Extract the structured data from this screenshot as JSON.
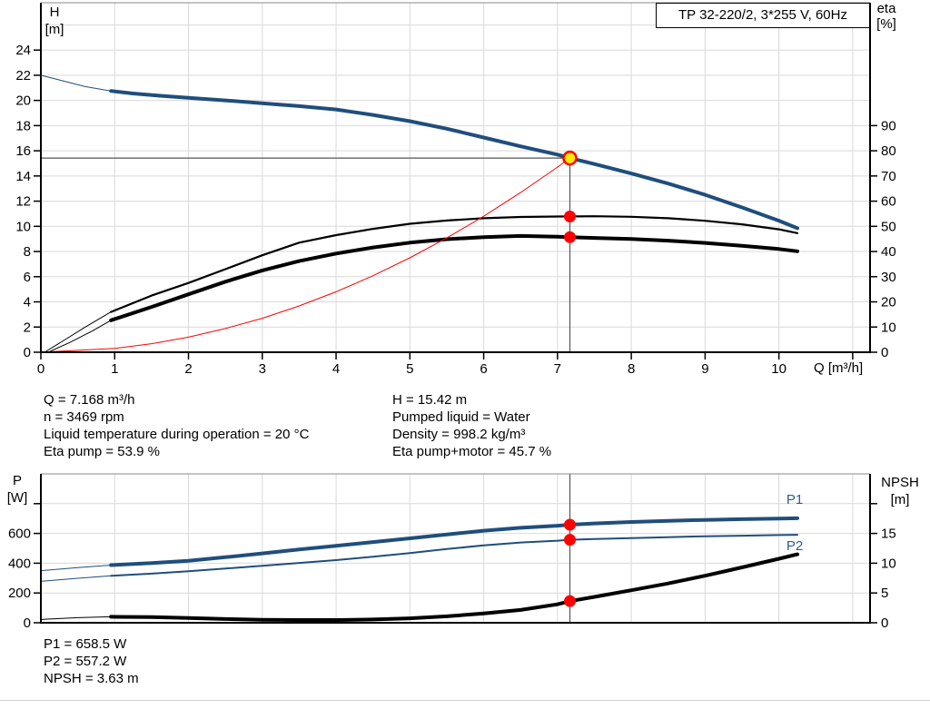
{
  "theme": {
    "blue": "#1f4e7c",
    "label_blue": "#2c5d90",
    "red": "#fe0000",
    "yellow": "#ffe800",
    "grid": "#d9d9d9",
    "crosshair": "#555555",
    "black": "#000000",
    "frame_top": "#8a8a8a"
  },
  "annotations": {
    "left": [
      "Q = 7.168 m³/h",
      "n = 3469 rpm",
      "Liquid temperature during operation = 20 °C",
      "Eta pump = 53.9 %"
    ],
    "right": [
      "H = 15.42 m",
      "Pumped liquid = Water",
      "Density = 998.2 kg/m³",
      "Eta pump+motor = 45.7 %"
    ],
    "bottom": [
      "P1 = 658.5 W",
      "P2 = 557.2 W",
      "NPSH = 3.63 m"
    ]
  },
  "chart_data": [
    {
      "type": "line",
      "title": "TP 32-220/2, 3*255 V, 60Hz",
      "x_axis": {
        "label": "Q [m³/h]",
        "min": 0,
        "max": 11.235,
        "ticks": [
          0,
          1,
          2,
          3,
          4,
          5,
          6,
          7,
          8,
          9,
          10
        ],
        "unlabeled_ticks": [
          11
        ],
        "gridlines": [
          1,
          2,
          3,
          4,
          5,
          6,
          7,
          8,
          9,
          10,
          11
        ]
      },
      "y_left": {
        "label_line1": "H",
        "label_line2": "[m]",
        "min": 0,
        "max": 27.76,
        "ticks": [
          0,
          2,
          4,
          6,
          8,
          10,
          12,
          14,
          16,
          18,
          20,
          22,
          24
        ],
        "gridlines": [
          2,
          4,
          6,
          8,
          10,
          12,
          14,
          16,
          18,
          20,
          22,
          24,
          26
        ]
      },
      "y_right": {
        "label_line1": "eta",
        "label_line2": "[%]",
        "min": 0,
        "max": 138.8,
        "ticks": [
          0,
          10,
          20,
          30,
          40,
          50,
          60,
          70,
          80,
          90
        ]
      },
      "series": [
        {
          "id": "h-curve",
          "name": "Pump curve H(Q)",
          "axis": "left",
          "color": "blue",
          "width": 4,
          "thin_until": 0.95,
          "points": [
            [
              0,
              22.0
            ],
            [
              0.3,
              21.55
            ],
            [
              0.6,
              21.1
            ],
            [
              0.95,
              20.75
            ],
            [
              1.25,
              20.55
            ],
            [
              1.6,
              20.38
            ],
            [
              2,
              20.2
            ],
            [
              2.5,
              20.0
            ],
            [
              3,
              19.78
            ],
            [
              3.5,
              19.55
            ],
            [
              4,
              19.28
            ],
            [
              4.5,
              18.85
            ],
            [
              5,
              18.35
            ],
            [
              5.5,
              17.75
            ],
            [
              6,
              17.05
            ],
            [
              6.5,
              16.35
            ],
            [
              7,
              15.7
            ],
            [
              7.168,
              15.42
            ],
            [
              7.5,
              14.95
            ],
            [
              8,
              14.2
            ],
            [
              8.5,
              13.4
            ],
            [
              9,
              12.5
            ],
            [
              9.5,
              11.5
            ],
            [
              10,
              10.45
            ],
            [
              10.25,
              9.85
            ]
          ]
        },
        {
          "id": "eta-pump-curve",
          "name": "Eta pump",
          "axis": "right",
          "color": "black",
          "width": 2.2,
          "thin_until": 0.95,
          "points": [
            [
              0.05,
              0
            ],
            [
              0.3,
              4.5
            ],
            [
              0.6,
              10
            ],
            [
              0.95,
              16
            ],
            [
              1.5,
              22.5
            ],
            [
              2,
              27.5
            ],
            [
              2.5,
              33
            ],
            [
              3,
              38.5
            ],
            [
              3.5,
              43.5
            ],
            [
              4,
              46.5
            ],
            [
              4.5,
              49
            ],
            [
              5,
              51
            ],
            [
              5.5,
              52.3
            ],
            [
              6,
              53.2
            ],
            [
              6.5,
              53.7
            ],
            [
              7,
              53.9
            ],
            [
              7.5,
              54
            ],
            [
              8,
              53.8
            ],
            [
              8.5,
              53.2
            ],
            [
              9,
              52.2
            ],
            [
              9.5,
              50.8
            ],
            [
              10,
              48.8
            ],
            [
              10.25,
              47.3
            ]
          ]
        },
        {
          "id": "eta-pump-motor-curve",
          "name": "Eta pump+motor",
          "axis": "right",
          "color": "black",
          "width": 4,
          "thin_until": 0.95,
          "points": [
            [
              0.1,
              0
            ],
            [
              0.4,
              4
            ],
            [
              0.7,
              8.5
            ],
            [
              0.95,
              12.7
            ],
            [
              1.5,
              18
            ],
            [
              2,
              23
            ],
            [
              2.5,
              28
            ],
            [
              3,
              32.5
            ],
            [
              3.5,
              36.2
            ],
            [
              4,
              39.2
            ],
            [
              4.5,
              41.6
            ],
            [
              5,
              43.5
            ],
            [
              5.5,
              44.9
            ],
            [
              6,
              45.7
            ],
            [
              6.5,
              46.2
            ],
            [
              7,
              45.9
            ],
            [
              7.168,
              45.7
            ],
            [
              7.5,
              45.4
            ],
            [
              8,
              45
            ],
            [
              8.5,
              44.3
            ],
            [
              9,
              43.4
            ],
            [
              9.5,
              42.3
            ],
            [
              10,
              41
            ],
            [
              10.25,
              40.1
            ]
          ]
        },
        {
          "id": "system-curve",
          "name": "System curve",
          "axis": "left",
          "color": "red",
          "width": 1,
          "points": [
            [
              0,
              0
            ],
            [
              1,
              0.3
            ],
            [
              1.5,
              0.68
            ],
            [
              2,
              1.2
            ],
            [
              2.5,
              1.88
            ],
            [
              3,
              2.7
            ],
            [
              3.5,
              3.68
            ],
            [
              4,
              4.8
            ],
            [
              4.5,
              6.08
            ],
            [
              5,
              7.5
            ],
            [
              5.5,
              9.08
            ],
            [
              6,
              10.8
            ],
            [
              6.5,
              12.68
            ],
            [
              7,
              14.7
            ],
            [
              7.168,
              15.42
            ]
          ]
        }
      ],
      "markers": [
        {
          "id": "duty-point",
          "type": "duty",
          "q": 7.168,
          "v": 15.42,
          "axis": "left"
        },
        {
          "id": "eta-pump-dot",
          "type": "dot",
          "q": 7.168,
          "v": 53.9,
          "axis": "right"
        },
        {
          "id": "eta-pump-motor-dot",
          "type": "dot",
          "q": 7.168,
          "v": 45.7,
          "axis": "right"
        }
      ],
      "crosshair": {
        "q": 7.168,
        "h": 15.42
      }
    },
    {
      "type": "line",
      "x_axis": {
        "min": 0,
        "max": 11.235,
        "ticks": [],
        "gridlines": [
          1,
          2,
          3,
          4,
          5,
          6,
          7,
          8,
          9,
          10,
          11
        ]
      },
      "y_left": {
        "label_line1": "P",
        "label_line2": "[W]",
        "min": 0,
        "max": 1000,
        "ticks": [
          0,
          200,
          400,
          600
        ],
        "unlabeled_ticks": [
          800
        ],
        "gridlines": [
          200,
          400,
          600,
          800
        ]
      },
      "y_right": {
        "label_line1": "NPSH",
        "label_line2": "[m]",
        "min": 0,
        "max": 25,
        "ticks": [
          0,
          5,
          10,
          15
        ],
        "unlabeled_ticks": [
          20
        ]
      },
      "series": [
        {
          "id": "p1-curve",
          "name": "Power input P1",
          "label": "P1",
          "axis": "left",
          "color": "blue",
          "width": 4,
          "thin_until": 0.95,
          "points": [
            [
              0,
              350
            ],
            [
              0.5,
              370
            ],
            [
              0.95,
              387
            ],
            [
              1.5,
              401
            ],
            [
              2,
              416
            ],
            [
              2.5,
              440
            ],
            [
              3,
              466
            ],
            [
              3.5,
              492
            ],
            [
              4,
              517
            ],
            [
              4.5,
              542
            ],
            [
              5,
              567
            ],
            [
              5.5,
              593
            ],
            [
              6,
              618
            ],
            [
              6.5,
              638
            ],
            [
              7,
              652
            ],
            [
              7.168,
              658.5
            ],
            [
              7.5,
              667
            ],
            [
              8,
              677
            ],
            [
              8.5,
              685
            ],
            [
              9,
              691
            ],
            [
              9.5,
              696
            ],
            [
              10,
              700
            ],
            [
              10.25,
              702
            ]
          ]
        },
        {
          "id": "p2-curve",
          "name": "Shaft power P2",
          "label": "P2",
          "axis": "left",
          "color": "blue",
          "width": 2,
          "thin_until": 0.95,
          "points": [
            [
              0,
              278
            ],
            [
              0.5,
              299
            ],
            [
              0.95,
              315
            ],
            [
              1.5,
              330
            ],
            [
              2,
              346
            ],
            [
              2.5,
              364
            ],
            [
              3,
              383
            ],
            [
              3.5,
              402
            ],
            [
              4,
              421
            ],
            [
              4.5,
              443
            ],
            [
              5,
              468
            ],
            [
              5.5,
              495
            ],
            [
              6,
              520
            ],
            [
              6.5,
              539
            ],
            [
              7,
              551
            ],
            [
              7.168,
              557.2
            ],
            [
              7.5,
              563
            ],
            [
              8,
              569
            ],
            [
              8.5,
              575
            ],
            [
              9,
              581
            ],
            [
              9.5,
              585
            ],
            [
              10,
              589
            ],
            [
              10.25,
              591
            ]
          ]
        },
        {
          "id": "npsh-curve",
          "name": "NPSH",
          "axis": "right",
          "color": "black",
          "width": 4,
          "thin_until": 0.95,
          "points": [
            [
              0,
              0.55
            ],
            [
              0.5,
              0.85
            ],
            [
              0.95,
              1.0
            ],
            [
              1.5,
              0.95
            ],
            [
              2,
              0.8
            ],
            [
              2.5,
              0.62
            ],
            [
              3,
              0.5
            ],
            [
              3.5,
              0.45
            ],
            [
              4,
              0.45
            ],
            [
              4.5,
              0.55
            ],
            [
              5,
              0.75
            ],
            [
              5.5,
              1.08
            ],
            [
              6,
              1.55
            ],
            [
              6.5,
              2.15
            ],
            [
              7,
              3.1
            ],
            [
              7.168,
              3.63
            ],
            [
              7.5,
              4.35
            ],
            [
              8,
              5.45
            ],
            [
              8.5,
              6.6
            ],
            [
              9,
              7.9
            ],
            [
              9.5,
              9.3
            ],
            [
              10,
              10.75
            ],
            [
              10.25,
              11.5
            ]
          ]
        }
      ],
      "markers": [
        {
          "id": "p1-dot",
          "type": "dot",
          "q": 7.168,
          "v": 658.5,
          "axis": "left"
        },
        {
          "id": "p2-dot",
          "type": "dot",
          "q": 7.168,
          "v": 557.2,
          "axis": "left"
        },
        {
          "id": "npsh-dot",
          "type": "dot",
          "q": 7.168,
          "v": 3.63,
          "axis": "right"
        }
      ],
      "crosshair": {
        "q": 7.168
      }
    }
  ]
}
